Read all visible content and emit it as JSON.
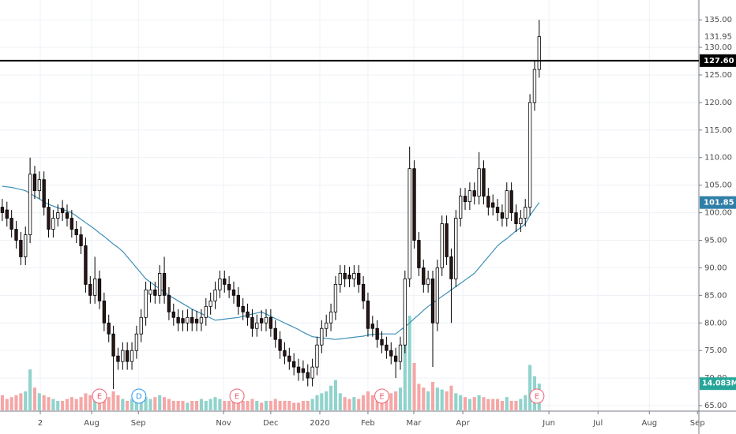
{
  "chart_data": {
    "type": "candlestick",
    "xlim": [
      -0.5,
      150.5
    ],
    "ylim": [
      64,
      138.6
    ],
    "xticks": [
      {
        "value": 8.2,
        "label": "2"
      },
      {
        "value": 19.3,
        "label": "Aug"
      },
      {
        "value": 29.4,
        "label": "Sep"
      },
      {
        "value": 47.8,
        "label": "Nov"
      },
      {
        "value": 58,
        "label": "Dec"
      },
      {
        "value": 68.6,
        "label": "2020"
      },
      {
        "value": 79,
        "label": "Feb"
      },
      {
        "value": 88.9,
        "label": "Mar"
      },
      {
        "value": 99.5,
        "label": "Apr"
      },
      {
        "value": 118.1,
        "label": "Jun"
      },
      {
        "value": 128.7,
        "label": "Jul"
      },
      {
        "value": 139.8,
        "label": "Aug"
      },
      {
        "value": 150.2,
        "label": "Sep"
      }
    ],
    "yticks": [
      {
        "value": 65,
        "label": "65.00"
      },
      {
        "value": 70,
        "label": "70.00"
      },
      {
        "value": 75,
        "label": "75.00"
      },
      {
        "value": 80,
        "label": "80.00"
      },
      {
        "value": 85,
        "label": "85.00"
      },
      {
        "value": 90,
        "label": "90.00"
      },
      {
        "value": 95,
        "label": "95.00"
      },
      {
        "value": 100,
        "label": "100.00"
      },
      {
        "value": 105,
        "label": "105.00"
      },
      {
        "value": 110,
        "label": "110.00"
      },
      {
        "value": 115,
        "label": "115.00"
      },
      {
        "value": 120,
        "label": "120.00"
      },
      {
        "value": 125,
        "label": "125.00"
      },
      {
        "value": 130,
        "label": "130.00"
      },
      {
        "value": 135,
        "label": "135.00"
      }
    ],
    "grid": true,
    "up_color": "#ffffff",
    "down_color": "#2a1616",
    "ma_color": "#3d8fb8",
    "label_color": "#2f7fa8",
    "volume_up_color": "#8fd3cc",
    "volume_down_color": "#f4a7a6",
    "open": [
      101,
      100.5,
      99,
      97,
      95,
      92,
      96,
      107,
      104,
      106,
      101,
      97,
      99,
      100.8,
      100,
      99,
      97,
      96,
      94,
      87,
      85,
      88,
      84,
      80,
      78,
      74,
      73,
      75,
      73,
      75,
      78,
      81,
      85.2,
      86,
      85,
      89,
      85,
      82,
      81,
      80.8,
      80,
      81,
      80.7,
      80,
      81,
      83,
      84,
      86,
      88,
      87,
      86,
      85,
      83,
      82,
      81,
      79,
      80.8,
      80,
      81,
      79,
      77,
      75,
      74,
      73,
      72,
      71.7,
      71,
      70,
      72,
      76,
      79,
      80,
      82,
      87,
      89,
      88.7,
      88,
      89,
      87,
      84,
      79.8,
      79,
      77,
      76,
      75,
      74,
      73,
      76,
      88,
      108,
      95,
      90,
      87,
      88,
      80,
      90,
      98,
      92,
      88,
      99,
      103,
      102,
      104,
      103,
      108,
      103,
      101.8,
      101,
      100,
      99,
      104,
      100,
      98,
      99,
      101,
      120,
      126
    ],
    "high": [
      102.5,
      102,
      100.5,
      98.5,
      96.5,
      97.5,
      110,
      108.5,
      107.5,
      107.5,
      102.5,
      100.5,
      101.5,
      102.3,
      101.5,
      100.5,
      98.5,
      97.5,
      95.5,
      88.5,
      92,
      89.5,
      85.5,
      81.5,
      79.5,
      75.5,
      76.5,
      76.5,
      76.5,
      79.5,
      82.5,
      87.5,
      87.5,
      87.5,
      90.5,
      92,
      86.5,
      83.5,
      82.5,
      82.3,
      82.5,
      82.5,
      82.2,
      82.5,
      84.5,
      85.5,
      87.5,
      89.5,
      89.5,
      88.5,
      87.5,
      86.5,
      84.5,
      83.5,
      82.5,
      81.5,
      82.3,
      82.5,
      82.5,
      80.5,
      78.5,
      76.5,
      75.5,
      74.5,
      73.5,
      73.2,
      72.5,
      73.5,
      77.5,
      80.5,
      81.5,
      83.5,
      88.5,
      90.5,
      90.5,
      90.2,
      90.5,
      90.5,
      88.5,
      85.5,
      81.3,
      80.5,
      78.5,
      77.5,
      76.5,
      75.5,
      77.5,
      89.5,
      112,
      109.5,
      96.5,
      91.5,
      89.5,
      89.5,
      91.5,
      99.5,
      99.5,
      93.5,
      100.5,
      104.5,
      104.5,
      105.5,
      105.5,
      111,
      109.5,
      104.5,
      103.3,
      102.5,
      101.5,
      105.5,
      105.5,
      101.5,
      100.5,
      102.5,
      121.5,
      127.5,
      135
    ],
    "low": [
      98.5,
      97.5,
      95.5,
      93.5,
      90.5,
      90.5,
      94.5,
      102.5,
      102.5,
      99.5,
      95.5,
      95.5,
      97.5,
      98.5,
      97.5,
      95.5,
      94.5,
      92.5,
      85.5,
      83.5,
      83.5,
      82.5,
      78.5,
      76.5,
      68,
      71.5,
      71.5,
      71.5,
      71.5,
      73.5,
      76.5,
      79.5,
      83.7,
      83.5,
      83.5,
      83.5,
      80.5,
      79.5,
      78.5,
      78.5,
      78.5,
      78.5,
      78.5,
      78.5,
      79.5,
      81.5,
      82.5,
      84.5,
      85.5,
      84.5,
      83.5,
      81.5,
      80.5,
      79.5,
      77.5,
      77.5,
      78.5,
      78.5,
      77.5,
      75.5,
      73.5,
      72.5,
      71.5,
      70.5,
      69.5,
      69.5,
      68.5,
      68.5,
      70.5,
      74.5,
      77.5,
      78.5,
      80.5,
      85.5,
      86.5,
      86.5,
      86.5,
      85.5,
      82.5,
      77.5,
      77.5,
      75.5,
      74.5,
      73.5,
      72.5,
      70,
      71.5,
      74.5,
      86.5,
      93.5,
      88.5,
      85.5,
      85.5,
      72,
      78.5,
      88.5,
      90.5,
      80,
      86.5,
      97.5,
      100.5,
      100.5,
      101.5,
      101.5,
      101.5,
      99.5,
      99.5,
      98.5,
      97.5,
      97.5,
      98.5,
      96.5,
      96.5,
      97.5,
      99.5,
      118.5,
      124.5
    ],
    "close": [
      100,
      99,
      97,
      95,
      92,
      96,
      107,
      104,
      106,
      101,
      97,
      99,
      100,
      100,
      99,
      97,
      96,
      94,
      87,
      85,
      88,
      84,
      80,
      78,
      74,
      73,
      75,
      73,
      75,
      78,
      81,
      86,
      86,
      85,
      89,
      85,
      82,
      81,
      80,
      80,
      81,
      80,
      80,
      81,
      83,
      84,
      86,
      88,
      87,
      86,
      85,
      83,
      82,
      81,
      79,
      80,
      80,
      81,
      79,
      77,
      75,
      74,
      73,
      72,
      71,
      71,
      70,
      72,
      76,
      79,
      80,
      82,
      87,
      89,
      88,
      88,
      89,
      87,
      84,
      79,
      79,
      77,
      76,
      75,
      74,
      73,
      76,
      88,
      108,
      95,
      90,
      87,
      88,
      80,
      90,
      98,
      92,
      88,
      99,
      103,
      102,
      104,
      103,
      108,
      103,
      101,
      101,
      100,
      99,
      104,
      100,
      98,
      99,
      101,
      120,
      126,
      131.95
    ],
    "ma": [
      104.8,
      104.7,
      104.6,
      104.4,
      104.2,
      104,
      103.5,
      103,
      102.5,
      102,
      101.5,
      101.2,
      100.9,
      100.6,
      100.3,
      100,
      99.4,
      98.8,
      98.2,
      97.6,
      97,
      96.3,
      95.7,
      95,
      94.3,
      93.7,
      93,
      92,
      91,
      90,
      89,
      88,
      87.4,
      86.8,
      86.2,
      85.6,
      85,
      84.5,
      84,
      83.5,
      83,
      82.5,
      82.1,
      81.7,
      81.3,
      80.9,
      80.5,
      80.6,
      80.7,
      80.8,
      80.9,
      81,
      81.2,
      81.4,
      81.6,
      81.8,
      82,
      81.6,
      81.2,
      80.8,
      80.4,
      80,
      79.6,
      79.2,
      78.8,
      78.3,
      77.9,
      77.5,
      77.4,
      77.3,
      77.2,
      77.1,
      77,
      77.1,
      77.2,
      77.3,
      77.4,
      77.5,
      77.6,
      77.8,
      77.9,
      78,
      78,
      78,
      78,
      78,
      78.7,
      79.3,
      80,
      80.8,
      81.5,
      82.3,
      83,
      83.6,
      84.2,
      84.8,
      85.4,
      86,
      86.6,
      87.2,
      87.8,
      88.4,
      89,
      90,
      91,
      92,
      93,
      94,
      94.7,
      95.3,
      96,
      96.7,
      97.3,
      98,
      99.5,
      100.7,
      101.85
    ],
    "volume": {
      "values": [
        8,
        6,
        7,
        8,
        9,
        10,
        21.6,
        12,
        9,
        8,
        7,
        6,
        5,
        5,
        6,
        7,
        6,
        7,
        9,
        8,
        7,
        7,
        8,
        7,
        10,
        8,
        6,
        5,
        6,
        7,
        6,
        7,
        6,
        7,
        8,
        7,
        6,
        5,
        5,
        5,
        4,
        5,
        5,
        6,
        5,
        6,
        7,
        6,
        5,
        5,
        6,
        5,
        5,
        5,
        6,
        5,
        4,
        5,
        5,
        6,
        5,
        5,
        5,
        4,
        4,
        5,
        5,
        6,
        8,
        9,
        10,
        13,
        16,
        9,
        7,
        6,
        7,
        6,
        8,
        10,
        8,
        7,
        7,
        8,
        9,
        10,
        12,
        58,
        50,
        25,
        14,
        12,
        10,
        15,
        12,
        11,
        10,
        13,
        9,
        8,
        7,
        6,
        7,
        8,
        7,
        6,
        6,
        6,
        5,
        7,
        5,
        5,
        6,
        8,
        24,
        18,
        14.083
      ],
      "last_label": "14.083M"
    },
    "hline": {
      "value": 127.6,
      "label": "127.60"
    },
    "events": [
      {
        "label": "E",
        "x": 21
      },
      {
        "label": "D",
        "x": 29.5
      },
      {
        "label": "E",
        "x": 50.7
      },
      {
        "label": "E",
        "x": 82
      },
      {
        "label": "E",
        "x": 115.5
      }
    ]
  }
}
